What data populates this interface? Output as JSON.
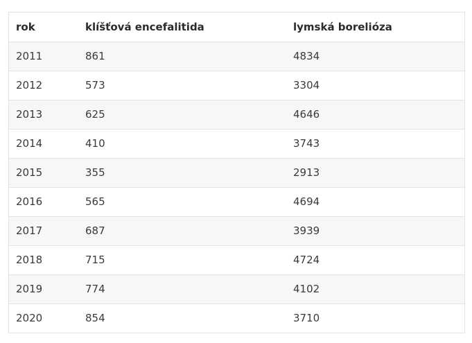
{
  "table": {
    "headers": [
      "rok",
      "klíšťová encefalitida",
      "lymská borelióza"
    ],
    "rows": [
      [
        "2011",
        "861",
        "4834"
      ],
      [
        "2012",
        "573",
        "3304"
      ],
      [
        "2013",
        "625",
        "4646"
      ],
      [
        "2014",
        "410",
        "3743"
      ],
      [
        "2015",
        "355",
        "2913"
      ],
      [
        "2016",
        "565",
        "4694"
      ],
      [
        "2017",
        "687",
        "3939"
      ],
      [
        "2018",
        "715",
        "4724"
      ],
      [
        "2019",
        "774",
        "4102"
      ],
      [
        "2020",
        "854",
        "3710"
      ]
    ]
  }
}
